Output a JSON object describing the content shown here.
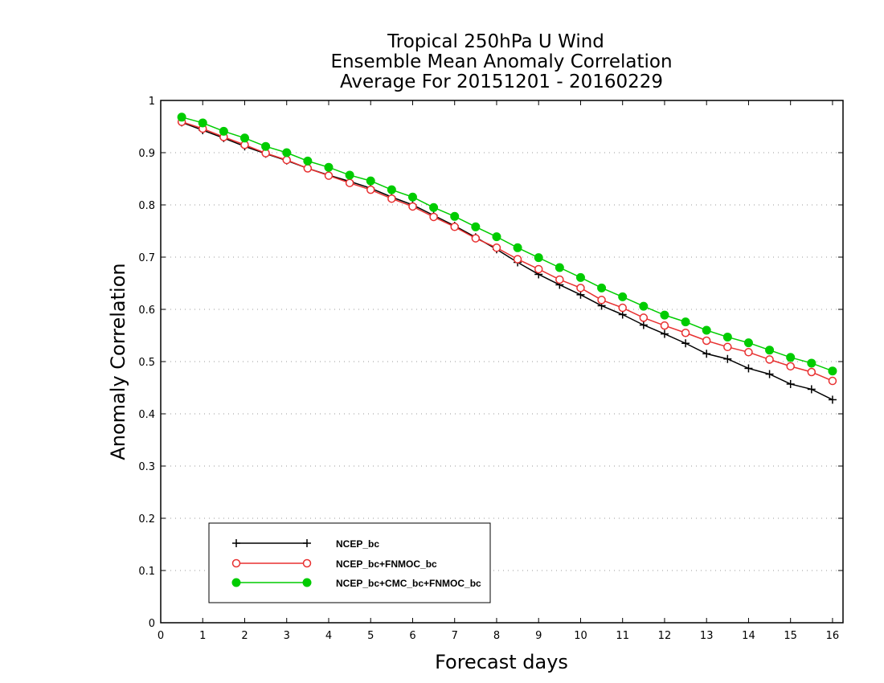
{
  "chart_data": {
    "type": "line",
    "title": [
      "Tropical 250hPa U Wind",
      "Ensemble Mean Anomaly Correlation",
      "Average For 20151201 - 20160229"
    ],
    "xlabel": "Forecast days",
    "ylabel": "Anomaly Correlation",
    "xlim": [
      0,
      16.25
    ],
    "ylim": [
      0,
      1
    ],
    "xticks": [
      0,
      1,
      2,
      3,
      4,
      5,
      6,
      7,
      8,
      9,
      10,
      11,
      12,
      13,
      14,
      15,
      16
    ],
    "yticks": [
      0,
      0.1,
      0.2,
      0.3,
      0.4,
      0.5,
      0.6,
      0.7,
      0.8,
      0.9,
      1
    ],
    "grid": "horizontal dotted",
    "legend_position": "bottom-left",
    "x": [
      0.5,
      1,
      1.5,
      2,
      2.5,
      3,
      3.5,
      4,
      4.5,
      5,
      5.5,
      6,
      6.5,
      7,
      7.5,
      8,
      8.5,
      9,
      9.5,
      10,
      10.5,
      11,
      11.5,
      12,
      12.5,
      13,
      13.5,
      14,
      14.5,
      15,
      15.5,
      16
    ],
    "series": [
      {
        "name": "NCEP_bc",
        "color": "#000000",
        "marker": "plus",
        "values": [
          0.958,
          0.943,
          0.928,
          0.912,
          0.898,
          0.885,
          0.87,
          0.857,
          0.845,
          0.832,
          0.815,
          0.8,
          0.78,
          0.76,
          0.738,
          0.715,
          0.69,
          0.667,
          0.647,
          0.628,
          0.607,
          0.59,
          0.57,
          0.553,
          0.535,
          0.515,
          0.505,
          0.487,
          0.476,
          0.457,
          0.447,
          0.427
        ]
      },
      {
        "name": "NCEP_bc+FNMOC_bc",
        "color": "#e83030",
        "marker": "open-circle",
        "values": [
          0.959,
          0.946,
          0.93,
          0.915,
          0.899,
          0.886,
          0.87,
          0.856,
          0.842,
          0.829,
          0.812,
          0.797,
          0.777,
          0.758,
          0.736,
          0.718,
          0.696,
          0.677,
          0.657,
          0.641,
          0.618,
          0.603,
          0.584,
          0.569,
          0.555,
          0.54,
          0.528,
          0.518,
          0.504,
          0.491,
          0.48,
          0.463
        ]
      },
      {
        "name": "NCEP_bc+CMC_bc+FNMOC_bc",
        "color": "#00cc00",
        "marker": "filled-circle",
        "values": [
          0.968,
          0.957,
          0.941,
          0.928,
          0.912,
          0.9,
          0.884,
          0.872,
          0.857,
          0.846,
          0.829,
          0.815,
          0.795,
          0.778,
          0.758,
          0.739,
          0.718,
          0.699,
          0.68,
          0.661,
          0.641,
          0.624,
          0.606,
          0.589,
          0.576,
          0.56,
          0.547,
          0.536,
          0.522,
          0.508,
          0.497,
          0.482
        ]
      }
    ]
  }
}
